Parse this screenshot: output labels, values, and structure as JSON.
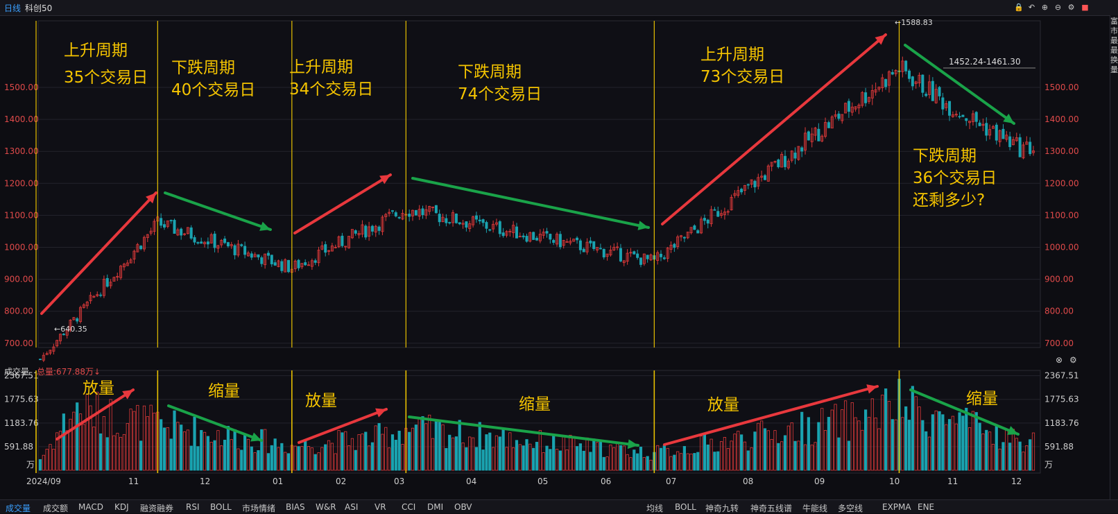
{
  "header": {
    "period": "日线",
    "symbol": "科创50"
  },
  "indicator_tabs": [
    "成交量",
    "成交额",
    "MACD",
    "KDJ",
    "融资融券",
    "RSI",
    "BOLL",
    "市场情绪",
    "BIAS",
    "W&R",
    "ASI",
    "VR",
    "CCI",
    "DMI",
    "OBV"
  ],
  "overlay_tabs": [
    "均线",
    "BOLL",
    "神奇九转",
    "神奇五线谱",
    "牛能线",
    "多空线",
    "EXPMA",
    "ENE"
  ],
  "volume_panel": {
    "label": "成交量",
    "total": "总量:677.88万↓"
  },
  "right_strip_chars": [
    "富",
    "市",
    "最",
    "最",
    "换",
    "量"
  ],
  "colors": {
    "up": "#e03a3a",
    "down": "#1aa3b0",
    "annot": "#f5c400",
    "arrow_up": "#e8383d",
    "arrow_down": "#1aa349",
    "divider": "#e8c000"
  },
  "chart_data": {
    "type": "candlestick",
    "price_axis": {
      "ticks": [
        700,
        800,
        900,
        1000,
        1100,
        1200,
        1300,
        1400,
        1500
      ],
      "tick_labels": [
        "700.00",
        "800.00",
        "900.00",
        "1000.00",
        "1100.00",
        "1200.00",
        "1300.00",
        "1400.00",
        "1500.00"
      ]
    },
    "volume_axis": {
      "ticks": [
        591.88,
        1183.76,
        1775.63,
        2367.51
      ],
      "tick_labels": [
        "591.88",
        "1183.76",
        "1775.63",
        "2367.51"
      ],
      "unit": "万"
    },
    "x_labels": [
      "2024/09",
      "11",
      "12",
      "01",
      "02",
      "03",
      "04",
      "05",
      "06",
      "07",
      "08",
      "09",
      "10",
      "11",
      "12"
    ],
    "price_annotations": {
      "low": "←640.35",
      "high": "←1588.83",
      "range": "1452.24-1461.30"
    },
    "phases": [
      {
        "title": "上升周期",
        "days": "35个交易日",
        "direction": "up",
        "volume_note": "放量"
      },
      {
        "title": "下跌周期",
        "days": "40个交易日",
        "direction": "down",
        "volume_note": "缩量"
      },
      {
        "title": "上升周期",
        "days": "34个交易日",
        "direction": "up",
        "volume_note": "放量"
      },
      {
        "title": "下跌周期",
        "days": "74个交易日",
        "direction": "down",
        "volume_note": "缩量"
      },
      {
        "title": "上升周期",
        "days": "73个交易日",
        "direction": "up",
        "volume_note": "放量"
      },
      {
        "title": "下跌周期",
        "days": "36个交易日",
        "direction": "down",
        "volume_note": "缩量",
        "extra": "还剩多少?"
      }
    ],
    "anchors": [
      {
        "date_index": 0,
        "price": 650
      },
      {
        "date_index": 35,
        "price": 1075
      },
      {
        "date_index": 75,
        "price": 935
      },
      {
        "date_index": 109,
        "price": 1120
      },
      {
        "date_index": 183,
        "price": 955
      },
      {
        "date_index": 256,
        "price": 1560
      },
      {
        "date_index": 270,
        "price": 1450
      },
      {
        "date_index": 292,
        "price": 1310
      }
    ],
    "vol_level": [
      {
        "date_index": 0,
        "volume": 300
      },
      {
        "date_index": 10,
        "volume": 1600
      },
      {
        "date_index": 35,
        "volume": 1200
      },
      {
        "date_index": 75,
        "volume": 650
      },
      {
        "date_index": 100,
        "volume": 850
      },
      {
        "date_index": 109,
        "volume": 1100
      },
      {
        "date_index": 183,
        "volume": 450
      },
      {
        "date_index": 240,
        "volume": 1300
      },
      {
        "date_index": 256,
        "volume": 1700
      },
      {
        "date_index": 292,
        "volume": 750
      }
    ],
    "divider_indices": [
      35,
      75,
      109,
      183,
      256
    ]
  }
}
